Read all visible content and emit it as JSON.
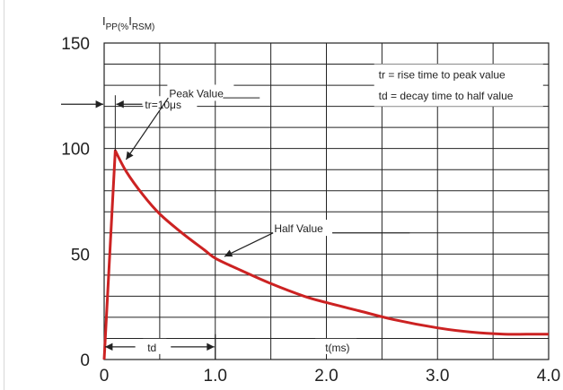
{
  "chart_data": {
    "type": "line",
    "ylabel": "IPP(% IRSM)",
    "ylabel_parts": [
      "I",
      "PP(%",
      "I",
      "RSM)"
    ],
    "xlabel": "t(ms)",
    "xlim": [
      0,
      4.0
    ],
    "ylim": [
      0,
      150
    ],
    "x_ticks": [
      {
        "value": 0,
        "label": "0"
      },
      {
        "value": 1.0,
        "label": "1.0"
      },
      {
        "value": 2.0,
        "label": "2.0"
      },
      {
        "value": 3.0,
        "label": "3.0"
      },
      {
        "value": 4.0,
        "label": "4.0"
      }
    ],
    "y_ticks": [
      {
        "value": 0,
        "label": "0"
      },
      {
        "value": 50,
        "label": "50"
      },
      {
        "value": 100,
        "label": "100"
      },
      {
        "value": 150,
        "label": "150"
      }
    ],
    "grid": true,
    "series": [
      {
        "color": "#cc2222",
        "x": [
          0.0,
          0.1,
          0.2,
          0.35,
          0.5,
          0.7,
          0.9,
          1.0,
          1.2,
          1.5,
          1.8,
          2.0,
          2.3,
          2.6,
          3.0,
          3.3,
          3.6,
          3.8,
          4.0
        ],
        "y": [
          0,
          99,
          89,
          78,
          69,
          60,
          52,
          48,
          43,
          36,
          30,
          27,
          23,
          19,
          15,
          13,
          12,
          12,
          12
        ]
      }
    ],
    "annotations": {
      "tr": "tr=10μs",
      "peak": "Peak Value",
      "half": "Half Value",
      "td": "td",
      "legend_line1": "tr = rise time to peak value",
      "legend_line2": "td = decay time to half value"
    },
    "annotation_values": {
      "tr_y": 121,
      "peak_x": 0.1,
      "peak_y": 99,
      "half_x": 1.05,
      "half_y": 48,
      "td_end_x": 1.0
    }
  },
  "colors": {
    "curve": "#cc2222",
    "grid": "#222222",
    "text": "#222222"
  }
}
